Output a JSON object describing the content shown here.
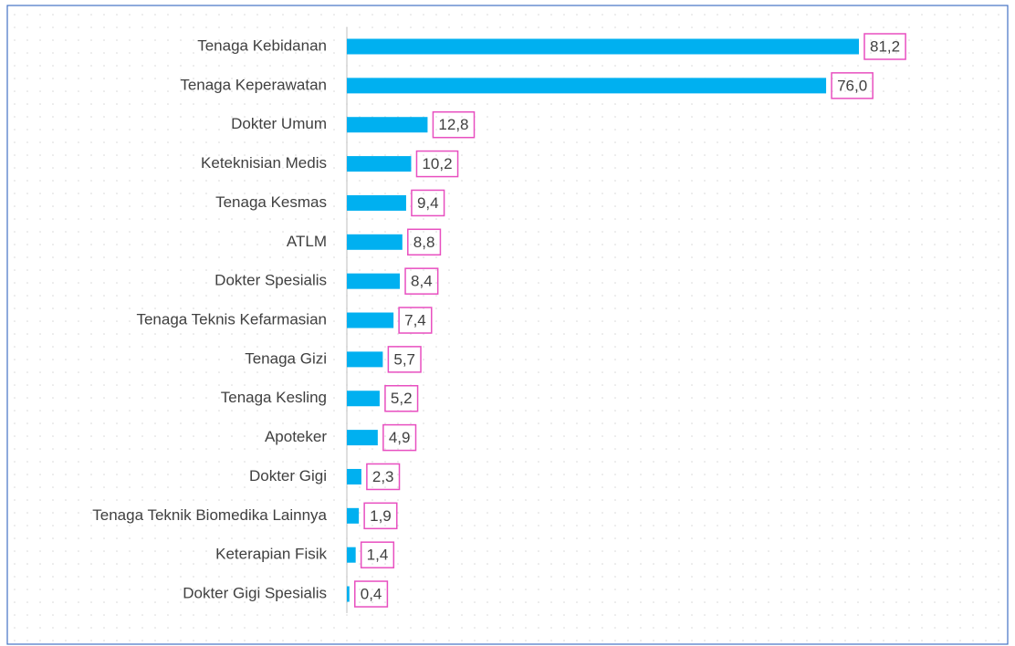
{
  "chart_data": {
    "type": "bar",
    "orientation": "horizontal",
    "color": "#00b0f0",
    "label_border_color": "#e84fc0",
    "categories": [
      "Tenaga Kebidanan",
      "Tenaga Keperawatan",
      "Dokter Umum",
      "Keteknisian Medis",
      "Tenaga Kesmas",
      "ATLM",
      "Dokter Spesialis",
      "Tenaga Teknis Kefarmasian",
      "Tenaga Gizi",
      "Tenaga Kesling",
      "Apoteker",
      "Dokter Gigi",
      "Tenaga Teknik Biomedika Lainnya",
      "Keterapian Fisik",
      "Dokter Gigi Spesialis"
    ],
    "values": [
      81.2,
      76.0,
      12.8,
      10.2,
      9.4,
      8.8,
      8.4,
      7.4,
      5.7,
      5.2,
      4.9,
      2.3,
      1.9,
      1.4,
      0.4
    ],
    "value_labels": [
      "81,2",
      "76,0",
      "12,8",
      "10,2",
      "9,4",
      "8,8",
      "8,4",
      "7,4",
      "5,7",
      "5,2",
      "4,9",
      "2,3",
      "1,9",
      "1,4",
      "0,4"
    ]
  }
}
